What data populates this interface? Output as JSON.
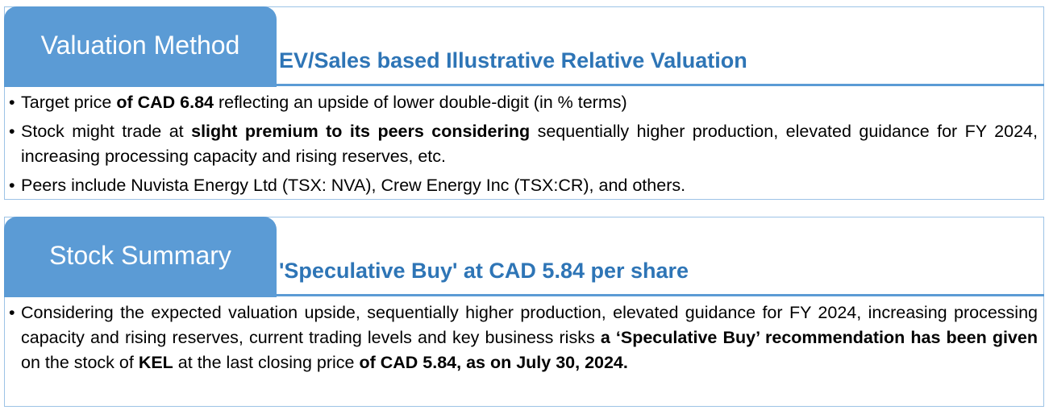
{
  "valuation": {
    "tab_label": "Valuation Method",
    "heading": "EV/Sales based Illustrative Relative Valuation",
    "bullets": {
      "b1": {
        "t1": "Target price ",
        "t2": "of CAD 6.84",
        "t3": " reflecting an upside of lower double-digit (in % terms)"
      },
      "b2": {
        "t1": "Stock might trade at ",
        "t2": "slight premium to its peers considering",
        "t3": " sequentially higher production, elevated guidance for FY 2024, increasing processing capacity and rising reserves, etc."
      },
      "b3": {
        "t1": "Peers include Nuvista Energy Ltd (TSX: NVA), Crew Energy Inc (TSX:CR), and others."
      }
    }
  },
  "summary": {
    "tab_label": "Stock Summary",
    "heading": "'Speculative Buy' at CAD 5.84 per share",
    "bullet": {
      "t1": "Considering the expected valuation upside, sequentially higher production, elevated guidance for FY 2024, increasing processing capacity and rising reserves, current trading levels and key business risks ",
      "t2": "a ‘Speculative Buy’ recommendation has been given",
      "t3": " on the stock of ",
      "t4": "KEL",
      "t5": " at the last closing price ",
      "t6": "of CAD 5.84, as on July 30, 2024."
    }
  },
  "colors": {
    "tab_fill": "#5b9bd5",
    "heading_text": "#2e75b6",
    "frame": "#9dc3e6"
  },
  "bullet_glyph": "•"
}
